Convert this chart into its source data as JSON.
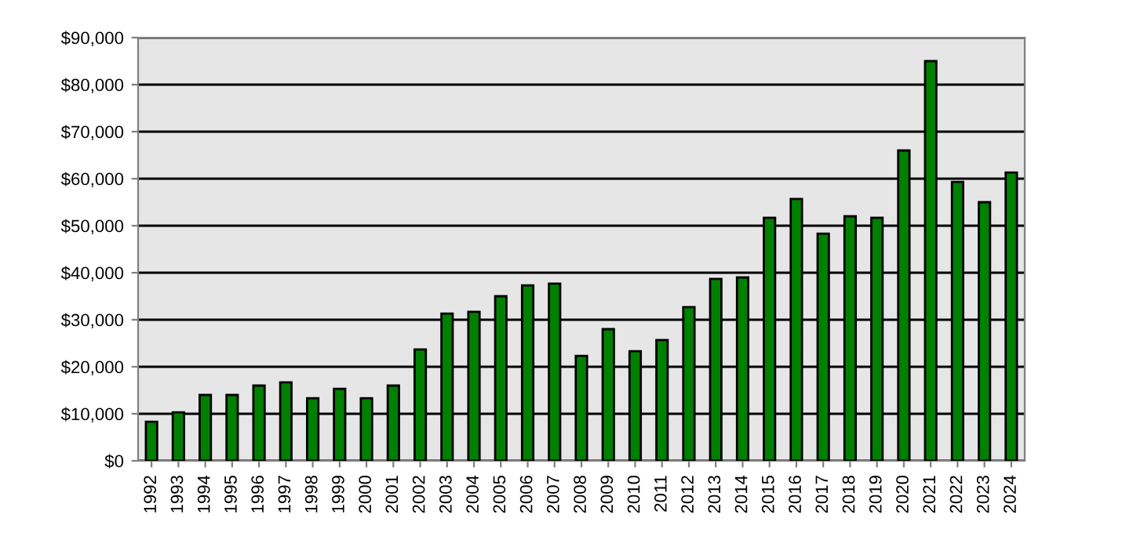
{
  "chart_data": {
    "type": "bar",
    "categories": [
      "1992",
      "1993",
      "1994",
      "1995",
      "1996",
      "1997",
      "1998",
      "1999",
      "2000",
      "2001",
      "2002",
      "2003",
      "2004",
      "2005",
      "2006",
      "2007",
      "2008",
      "2009",
      "2010",
      "2011",
      "2012",
      "2013",
      "2014",
      "2015",
      "2016",
      "2017",
      "2018",
      "2019",
      "2020",
      "2021",
      "2022",
      "2023",
      "2024"
    ],
    "values": [
      8300,
      10300,
      14000,
      14000,
      16000,
      16700,
      13300,
      15300,
      13300,
      16000,
      23700,
      31300,
      31700,
      35000,
      37300,
      37700,
      22300,
      28000,
      23300,
      25700,
      32700,
      38700,
      39000,
      51700,
      55700,
      48300,
      52000,
      51700,
      66000,
      85000,
      59300,
      55000,
      61300
    ],
    "color": "#008000",
    "ylim": [
      0,
      90000
    ],
    "yticks": [
      {
        "value": 0,
        "label": "$0"
      },
      {
        "value": 10000,
        "label": "$10,000"
      },
      {
        "value": 20000,
        "label": "$20,000"
      },
      {
        "value": 30000,
        "label": "$30,000"
      },
      {
        "value": 40000,
        "label": "$40,000"
      },
      {
        "value": 50000,
        "label": "$50,000"
      },
      {
        "value": 60000,
        "label": "$60,000"
      },
      {
        "value": 70000,
        "label": "$70,000"
      },
      {
        "value": 80000,
        "label": "$80,000"
      },
      {
        "value": 90000,
        "label": "$90,000"
      }
    ],
    "grid": "y",
    "legend": false
  }
}
